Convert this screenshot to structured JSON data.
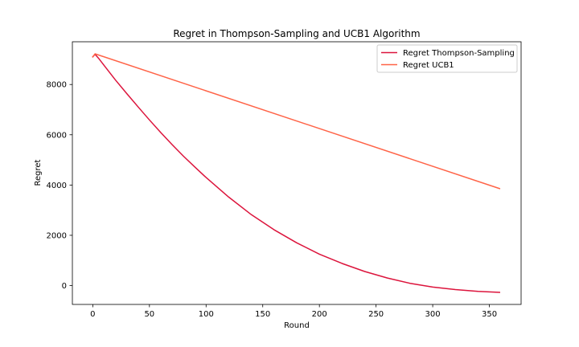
{
  "chart_data": {
    "type": "line",
    "title": "Regret in Thompson-Sampling and UCB1 Algorithm",
    "xlabel": "Round",
    "ylabel": "Regret",
    "xlim": [
      -18,
      378
    ],
    "ylim": [
      -750,
      9700
    ],
    "xticks": [
      0,
      50,
      100,
      150,
      200,
      250,
      300,
      350
    ],
    "yticks": [
      0,
      2000,
      4000,
      6000,
      8000
    ],
    "grid": false,
    "legend_position": "top-right",
    "series": [
      {
        "name": "Regret Thompson-Sampling",
        "color": "#dc143c",
        "x": [
          0,
          2,
          5,
          10,
          20,
          30,
          40,
          50,
          60,
          70,
          80,
          90,
          100,
          120,
          140,
          160,
          180,
          200,
          220,
          240,
          260,
          280,
          300,
          320,
          340,
          359
        ],
        "y": [
          9100,
          9200,
          9050,
          8760,
          8180,
          7640,
          7110,
          6590,
          6090,
          5610,
          5150,
          4720,
          4300,
          3520,
          2820,
          2220,
          1700,
          1250,
          880,
          560,
          300,
          90,
          -60,
          -160,
          -230,
          -270
        ]
      },
      {
        "name": "Regret UCB1",
        "color": "#ff6347",
        "x": [
          0,
          2,
          359
        ],
        "y": [
          9100,
          9220,
          3860
        ]
      }
    ]
  }
}
